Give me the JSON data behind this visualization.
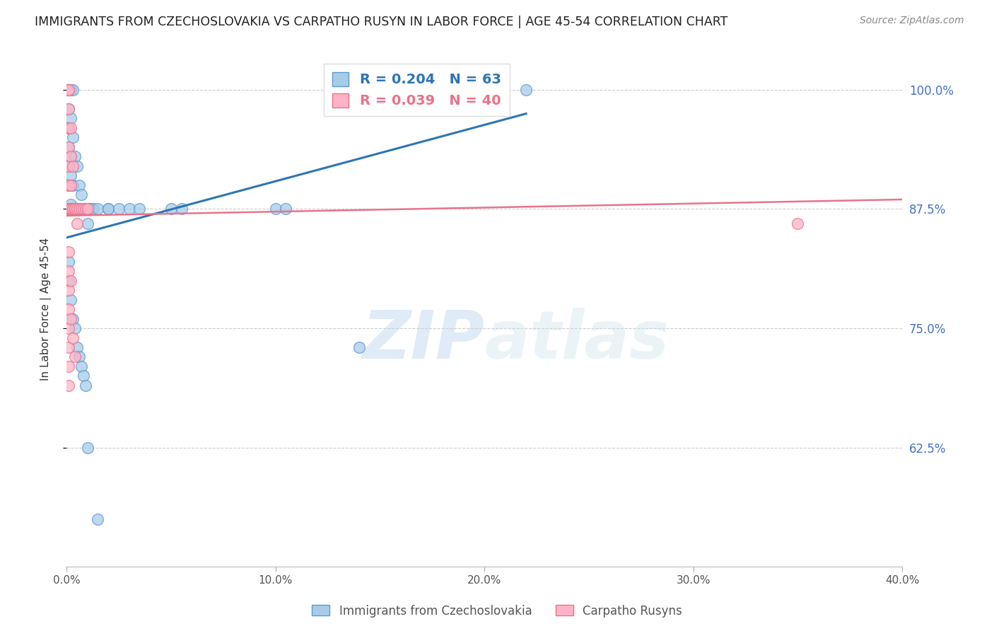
{
  "title": "IMMIGRANTS FROM CZECHOSLOVAKIA VS CARPATHO RUSYN IN LABOR FORCE | AGE 45-54 CORRELATION CHART",
  "source": "Source: ZipAtlas.com",
  "ylabel": "In Labor Force | Age 45-54",
  "blue_label": "Immigrants from Czechoslovakia",
  "pink_label": "Carpatho Rusyns",
  "blue_R": 0.204,
  "blue_N": 63,
  "pink_R": 0.039,
  "pink_N": 40,
  "blue_color": "#a8cce8",
  "pink_color": "#ffb3c6",
  "blue_edge_color": "#5b9bd5",
  "pink_edge_color": "#e8738a",
  "blue_line_color": "#2e75b6",
  "pink_line_color": "#e8738a",
  "xmin": 0.0,
  "xmax": 0.4,
  "ymin": 0.5,
  "ymax": 1.04,
  "yticks": [
    0.625,
    0.75,
    0.875,
    1.0
  ],
  "ytick_labels": [
    "62.5%",
    "75.0%",
    "87.5%",
    "100.0%"
  ],
  "xticks": [
    0.0,
    0.1,
    0.2,
    0.3,
    0.4
  ],
  "xtick_labels": [
    "0.0%",
    "10.0%",
    "20.0%",
    "30.0%",
    "40.0%"
  ],
  "blue_line_x": [
    0.0,
    0.22
  ],
  "blue_line_y": [
    0.845,
    0.975
  ],
  "pink_line_x": [
    0.0,
    0.4
  ],
  "pink_line_y": [
    0.868,
    0.885
  ],
  "blue_x": [
    0.001,
    0.001,
    0.001,
    0.001,
    0.001,
    0.001,
    0.001,
    0.001,
    0.001,
    0.001,
    0.002,
    0.002,
    0.002,
    0.002,
    0.002,
    0.002,
    0.002,
    0.003,
    0.003,
    0.003,
    0.003,
    0.003,
    0.004,
    0.004,
    0.004,
    0.005,
    0.005,
    0.005,
    0.006,
    0.006,
    0.007,
    0.007,
    0.008,
    0.009,
    0.01,
    0.01,
    0.011,
    0.012,
    0.013,
    0.015,
    0.02,
    0.02,
    0.025,
    0.03,
    0.035,
    0.05,
    0.055,
    0.1,
    0.105,
    0.14,
    0.22,
    0.001,
    0.001,
    0.002,
    0.003,
    0.004,
    0.005,
    0.006,
    0.007,
    0.008,
    0.009,
    0.01,
    0.015
  ],
  "blue_y": [
    1.0,
    1.0,
    1.0,
    0.98,
    0.96,
    0.94,
    0.92,
    0.9,
    0.875,
    0.875,
    1.0,
    0.97,
    0.93,
    0.91,
    0.88,
    0.875,
    0.875,
    1.0,
    0.95,
    0.9,
    0.875,
    0.875,
    0.93,
    0.875,
    0.875,
    0.92,
    0.875,
    0.875,
    0.9,
    0.875,
    0.89,
    0.875,
    0.875,
    0.875,
    0.875,
    0.86,
    0.875,
    0.875,
    0.875,
    0.875,
    0.875,
    0.875,
    0.875,
    0.875,
    0.875,
    0.875,
    0.875,
    0.875,
    0.875,
    0.73,
    1.0,
    0.82,
    0.8,
    0.78,
    0.76,
    0.75,
    0.73,
    0.72,
    0.71,
    0.7,
    0.69,
    0.625,
    0.55
  ],
  "pink_x": [
    0.001,
    0.001,
    0.001,
    0.001,
    0.001,
    0.001,
    0.001,
    0.001,
    0.001,
    0.001,
    0.002,
    0.002,
    0.002,
    0.002,
    0.002,
    0.003,
    0.003,
    0.003,
    0.004,
    0.004,
    0.005,
    0.005,
    0.006,
    0.007,
    0.008,
    0.009,
    0.01,
    0.001,
    0.001,
    0.001,
    0.001,
    0.001,
    0.001,
    0.001,
    0.002,
    0.002,
    0.003,
    0.004,
    0.35,
    0.001
  ],
  "pink_y": [
    1.0,
    1.0,
    0.98,
    0.96,
    0.94,
    0.92,
    0.9,
    0.875,
    0.875,
    0.875,
    0.96,
    0.93,
    0.9,
    0.875,
    0.875,
    0.92,
    0.875,
    0.875,
    0.875,
    0.875,
    0.875,
    0.86,
    0.875,
    0.875,
    0.875,
    0.875,
    0.875,
    0.83,
    0.81,
    0.79,
    0.77,
    0.75,
    0.73,
    0.71,
    0.8,
    0.76,
    0.74,
    0.72,
    0.86,
    0.69
  ]
}
